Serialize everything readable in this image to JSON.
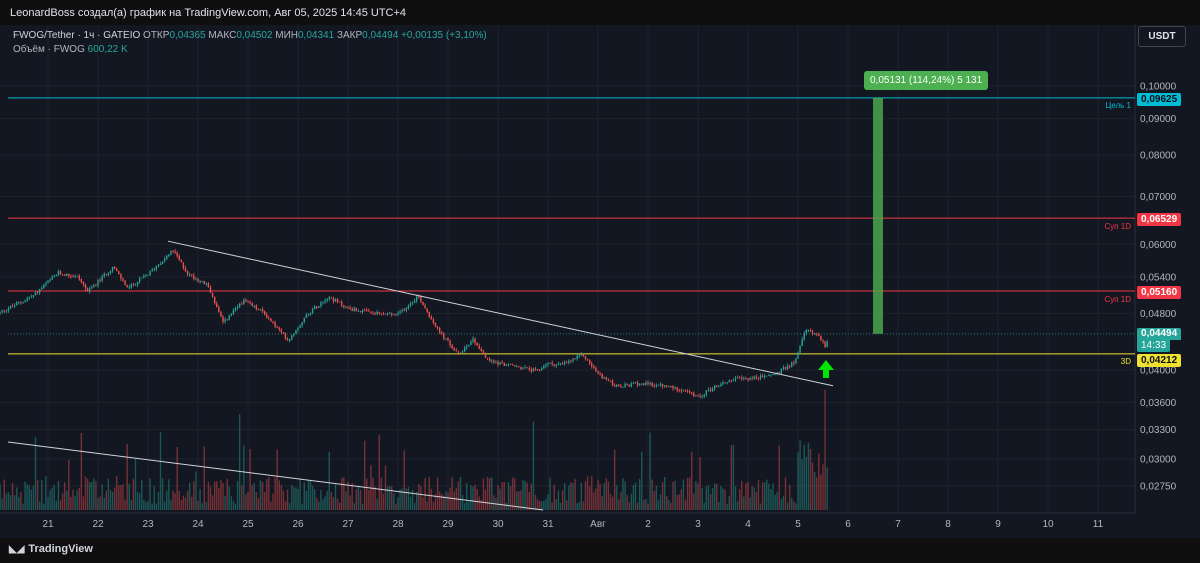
{
  "header": {
    "text": "LeonardBoss создал(а) график на TradingView.com, Авг 05, 2025 14:45 UTC+4"
  },
  "legend": {
    "symbol": "FWOG/Tether · 1ч · GATEIO",
    "open_label": "ОТКР",
    "open": "0,04365",
    "high_label": "МАКС",
    "high": "0,04502",
    "low_label": "МИН",
    "low": "0,04341",
    "close_label": "ЗАКР",
    "close": "0,04494",
    "change": "+0,00135 (+3,10%)",
    "volume_label": "Объём · FWOG",
    "volume": "600,22 K"
  },
  "currency_button": "USDT",
  "price_tags": {
    "target": "0,09625",
    "sup_upper": "0,06529",
    "sup_lower": "0,05160",
    "current": "0,04494",
    "countdown": "14:33",
    "level_3d": "0,04212"
  },
  "line_labels": {
    "target": "Цель 1",
    "sup_upper": "Суп 1D",
    "sup_lower": "Суп 1D",
    "level_3d": "3D"
  },
  "measure_label": "0,05131 (114,24%) 5 131",
  "footer": {
    "brand": "TradingView"
  },
  "colors": {
    "up": "#26a69a",
    "down": "#ef5350",
    "target": "#00bcd4",
    "support": "#f23645",
    "level_3d": "#f0e130",
    "measure": "#4caf50",
    "arrow": "#00e600"
  },
  "chart_data": {
    "type": "candlestick",
    "title": "FWOG/Tether · 1ч · GATEIO",
    "price_axis": {
      "scale": "log",
      "range": [
        0.0255,
        0.1085
      ],
      "ticks": [
        "0,10000",
        "0,09000",
        "0,08000",
        "0,07000",
        "0,06000",
        "0,05400",
        "0,04800",
        "0,04000",
        "0,03600",
        "0,03300",
        "0,03000",
        "0,02750"
      ]
    },
    "time_axis": {
      "ticks": [
        "21",
        "22",
        "23",
        "24",
        "25",
        "26",
        "27",
        "28",
        "29",
        "30",
        "31",
        "Авг",
        "2",
        "3",
        "4",
        "5",
        "6",
        "7",
        "8",
        "9",
        "10",
        "11"
      ]
    },
    "price_path_anchors": [
      {
        "day": 20.0,
        "price": 0.048
      },
      {
        "day": 20.7,
        "price": 0.0508
      },
      {
        "day": 21.2,
        "price": 0.0547
      },
      {
        "day": 21.6,
        "price": 0.054
      },
      {
        "day": 21.8,
        "price": 0.0515
      },
      {
        "day": 22.3,
        "price": 0.0558
      },
      {
        "day": 22.6,
        "price": 0.052
      },
      {
        "day": 23.0,
        "price": 0.0545
      },
      {
        "day": 23.5,
        "price": 0.0588
      },
      {
        "day": 23.8,
        "price": 0.0545
      },
      {
        "day": 24.2,
        "price": 0.0525
      },
      {
        "day": 24.5,
        "price": 0.0465
      },
      {
        "day": 24.9,
        "price": 0.05
      },
      {
        "day": 25.3,
        "price": 0.0482
      },
      {
        "day": 25.8,
        "price": 0.044
      },
      {
        "day": 26.2,
        "price": 0.048
      },
      {
        "day": 26.6,
        "price": 0.0507
      },
      {
        "day": 27.0,
        "price": 0.0488
      },
      {
        "day": 27.5,
        "price": 0.048
      },
      {
        "day": 28.0,
        "price": 0.0478
      },
      {
        "day": 28.4,
        "price": 0.0508
      },
      {
        "day": 28.8,
        "price": 0.0455
      },
      {
        "day": 29.2,
        "price": 0.042
      },
      {
        "day": 29.5,
        "price": 0.0442
      },
      {
        "day": 29.8,
        "price": 0.0412
      },
      {
        "day": 30.3,
        "price": 0.0405
      },
      {
        "day": 30.8,
        "price": 0.0398
      },
      {
        "day": 30.95,
        "price": 0.0408
      },
      {
        "day": 31.3,
        "price": 0.0407
      },
      {
        "day": 31.7,
        "price": 0.042
      },
      {
        "day": 32.0,
        "price": 0.0395
      },
      {
        "day": 32.4,
        "price": 0.0378
      },
      {
        "day": 32.8,
        "price": 0.0383
      },
      {
        "day": 33.3,
        "price": 0.038
      },
      {
        "day": 33.7,
        "price": 0.0375
      },
      {
        "day": 34.0,
        "price": 0.0366
      },
      {
        "day": 34.3,
        "price": 0.0378
      },
      {
        "day": 34.7,
        "price": 0.0388
      },
      {
        "day": 35.2,
        "price": 0.039
      },
      {
        "day": 35.6,
        "price": 0.0396
      },
      {
        "day": 35.95,
        "price": 0.0412
      },
      {
        "day": 36.15,
        "price": 0.0455
      },
      {
        "day": 36.4,
        "price": 0.045
      },
      {
        "day": 36.55,
        "price": 0.043
      },
      {
        "day": 36.62,
        "price": 0.04494
      }
    ],
    "levels": [
      {
        "name": "Цель 1",
        "price": 0.09625
      },
      {
        "name": "Суп 1D",
        "price": 0.06529
      },
      {
        "name": "Суп 1D",
        "price": 0.0516
      },
      {
        "name": "3D",
        "price": 0.04212
      }
    ],
    "trendlines": [
      {
        "from": {
          "day": 23.4,
          "price": 0.0606
        },
        "to": {
          "day": 36.7,
          "price": 0.038
        }
      }
    ],
    "measure": {
      "day": 37.6,
      "from": 0.04494,
      "to": 0.09625,
      "label": "0,05131 (114,24%) 5 131"
    }
  }
}
